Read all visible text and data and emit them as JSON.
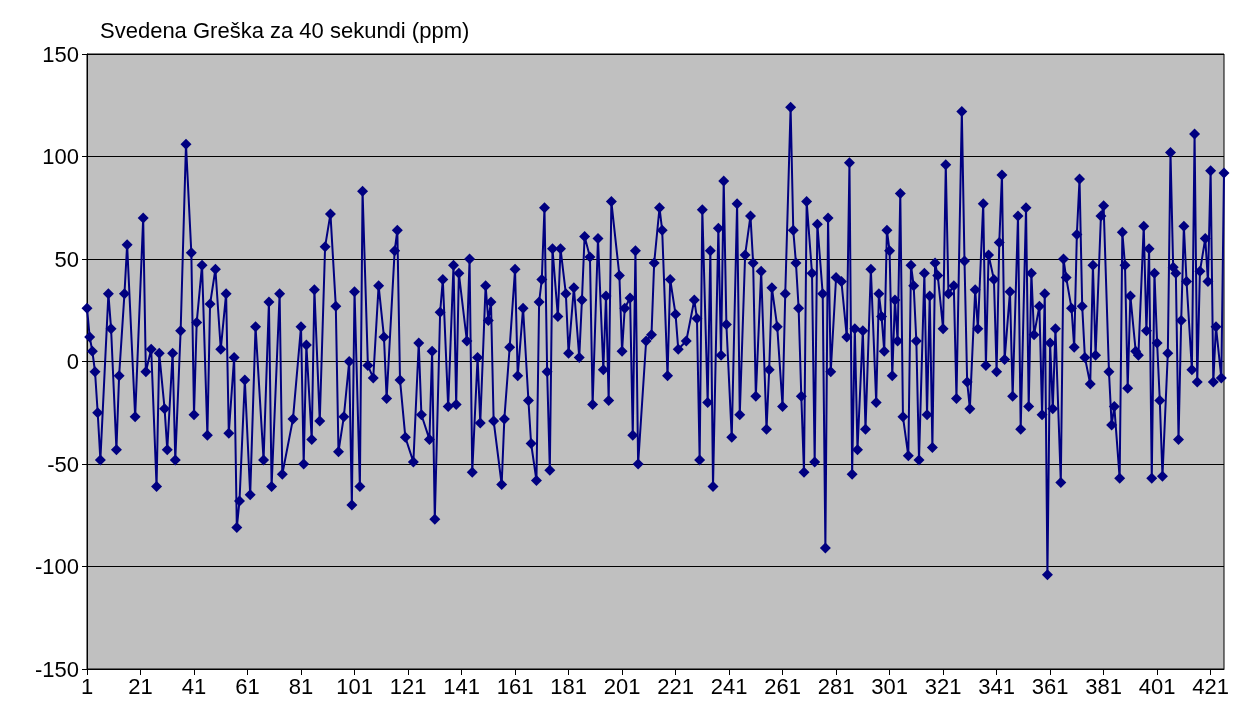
{
  "chart_data": {
    "type": "line",
    "title": "Svedena Greška za 40 sekundi (ppm)",
    "x": [
      1,
      2,
      3,
      4,
      5,
      6,
      9,
      10,
      12,
      13,
      15,
      16,
      19,
      22,
      23,
      25,
      27,
      28,
      30,
      31,
      33,
      34,
      36,
      38,
      40,
      41,
      42,
      44,
      46,
      47,
      49,
      51,
      53,
      54,
      56,
      57,
      58,
      60,
      62,
      64,
      67,
      69,
      70,
      73,
      74,
      78,
      81,
      82,
      83,
      85,
      86,
      88,
      90,
      92,
      94,
      95,
      97,
      99,
      100,
      101,
      103,
      104,
      106,
      108,
      110,
      112,
      113,
      116,
      117,
      118,
      120,
      123,
      125,
      126,
      129,
      130,
      131,
      133,
      134,
      136,
      138,
      139,
      140,
      143,
      144,
      145,
      147,
      148,
      150,
      151,
      152,
      153,
      156,
      157,
      159,
      161,
      162,
      164,
      166,
      167,
      169,
      170,
      171,
      172,
      173,
      174,
      175,
      177,
      178,
      180,
      181,
      183,
      185,
      186,
      187,
      189,
      190,
      192,
      194,
      195,
      196,
      197,
      200,
      201,
      202,
      204,
      205,
      206,
      207,
      210,
      212,
      213,
      215,
      216,
      218,
      219,
      221,
      222,
      225,
      228,
      229,
      230,
      231,
      233,
      234,
      235,
      237,
      238,
      239,
      240,
      242,
      244,
      245,
      247,
      249,
      250,
      251,
      253,
      255,
      256,
      257,
      259,
      261,
      262,
      264,
      265,
      266,
      267,
      268,
      269,
      270,
      272,
      273,
      274,
      276,
      277,
      278,
      279,
      281,
      283,
      285,
      286,
      287,
      288,
      289,
      291,
      292,
      294,
      296,
      297,
      298,
      299,
      300,
      301,
      302,
      303,
      304,
      305,
      306,
      308,
      309,
      310,
      311,
      312,
      314,
      315,
      316,
      317,
      318,
      319,
      321,
      322,
      323,
      325,
      326,
      328,
      329,
      330,
      331,
      333,
      334,
      336,
      337,
      338,
      340,
      341,
      342,
      343,
      344,
      346,
      347,
      349,
      350,
      352,
      353,
      354,
      355,
      357,
      358,
      359,
      360,
      361,
      362,
      363,
      365,
      366,
      367,
      369,
      370,
      371,
      372,
      373,
      374,
      376,
      377,
      378,
      380,
      381,
      383,
      384,
      385,
      387,
      388,
      389,
      390,
      391,
      393,
      394,
      396,
      397,
      398,
      399,
      400,
      401,
      402,
      403,
      405,
      406,
      407,
      408,
      409,
      410,
      411,
      412,
      414,
      415,
      416,
      417,
      419,
      420,
      421,
      422,
      423,
      425,
      426
    ],
    "series": [
      {
        "color": "#000080",
        "values": [
          26,
          12,
          5,
          -5,
          -25,
          -48,
          33,
          16,
          -43,
          -7,
          33,
          57,
          -27,
          70,
          -5,
          6,
          -61,
          4,
          -23,
          -43,
          4,
          -48,
          15,
          106,
          53,
          -26,
          19,
          47,
          -36,
          28,
          45,
          6,
          33,
          -35,
          2,
          -81,
          -68,
          -9,
          -65,
          17,
          -48,
          29,
          -61,
          33,
          -55,
          -28,
          17,
          -50,
          8,
          -38,
          35,
          -29,
          56,
          72,
          27,
          -44,
          -27,
          0,
          -70,
          34,
          -61,
          83,
          -2,
          -8,
          37,
          12,
          -18,
          54,
          64,
          -9,
          -37,
          -49,
          9,
          -26,
          -38,
          5,
          -77,
          24,
          40,
          -22,
          47,
          -21,
          43,
          10,
          50,
          -54,
          2,
          -30,
          37,
          20,
          29,
          -29,
          -60,
          -28,
          7,
          45,
          -7,
          26,
          -19,
          -40,
          -58,
          29,
          40,
          75,
          -5,
          -53,
          55,
          22,
          55,
          33,
          4,
          36,
          2,
          30,
          61,
          51,
          -21,
          60,
          -4,
          32,
          -19,
          78,
          42,
          5,
          26,
          31,
          -36,
          54,
          -50,
          10,
          13,
          48,
          75,
          64,
          -7,
          40,
          23,
          6,
          10,
          30,
          21,
          -48,
          74,
          -20,
          54,
          -61,
          65,
          3,
          88,
          18,
          -37,
          77,
          -26,
          52,
          71,
          48,
          -17,
          44,
          -33,
          -4,
          36,
          17,
          -22,
          33,
          124,
          64,
          48,
          26,
          -17,
          -54,
          78,
          43,
          -49,
          67,
          33,
          -91,
          70,
          -5,
          41,
          39,
          12,
          97,
          -55,
          16,
          -43,
          15,
          -33,
          45,
          -20,
          33,
          22,
          5,
          64,
          54,
          -7,
          30,
          10,
          82,
          -27,
          -46,
          47,
          37,
          10,
          -48,
          43,
          -26,
          32,
          -42,
          48,
          42,
          16,
          96,
          33,
          37,
          -18,
          122,
          49,
          -10,
          -23,
          35,
          16,
          77,
          -2,
          52,
          40,
          -5,
          58,
          91,
          1,
          34,
          -17,
          71,
          -33,
          75,
          -22,
          43,
          13,
          27,
          -26,
          33,
          -104,
          9,
          -23,
          16,
          -59,
          50,
          41,
          26,
          7,
          62,
          89,
          27,
          2,
          -11,
          47,
          3,
          71,
          76,
          -5,
          -31,
          -22,
          -57,
          63,
          47,
          -13,
          32,
          5,
          3,
          66,
          15,
          55,
          -57,
          43,
          9,
          -19,
          -56,
          4,
          102,
          46,
          43,
          -38,
          20,
          66,
          39,
          -4,
          111,
          -10,
          44,
          60,
          39,
          93,
          -10,
          17,
          -8,
          92
        ]
      }
    ],
    "xlim": [
      1,
      426
    ],
    "xticks": [
      1,
      21,
      41,
      61,
      81,
      101,
      121,
      141,
      161,
      181,
      201,
      221,
      241,
      261,
      281,
      301,
      321,
      341,
      361,
      381,
      401,
      421
    ],
    "ylim": [
      -150,
      150
    ],
    "yticks": [
      -150,
      -100,
      -50,
      0,
      50,
      100,
      150
    ],
    "grid": "y",
    "marker": "diamond",
    "line_style": "solid"
  }
}
